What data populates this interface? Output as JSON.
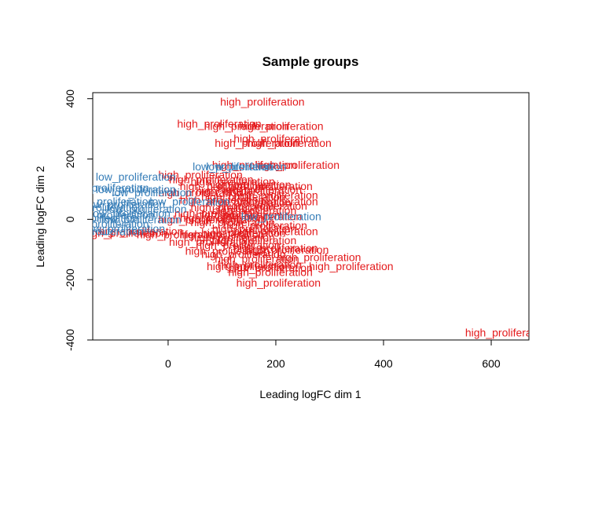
{
  "chart_data": {
    "type": "scatter",
    "title": "Sample groups",
    "xlabel": "Leading logFC dim 1",
    "ylabel": "Leading logFC dim 2",
    "xlim": [
      -140,
      670
    ],
    "ylim": [
      -400,
      420
    ],
    "xticks": [
      0,
      200,
      400,
      600
    ],
    "yticks": [
      -400,
      -200,
      0,
      200,
      400
    ],
    "grid": false,
    "colors": {
      "high_proliferation": "#e41a1c",
      "low_proliferation": "#377eb8"
    },
    "series": [
      {
        "name": "high_proliferation",
        "points": [
          [
            175,
            390
          ],
          [
            95,
            317
          ],
          [
            145,
            310
          ],
          [
            210,
            310
          ],
          [
            200,
            268
          ],
          [
            165,
            253
          ],
          [
            225,
            253
          ],
          [
            160,
            181
          ],
          [
            240,
            181
          ],
          [
            60,
            148
          ],
          [
            80,
            133
          ],
          [
            120,
            126
          ],
          [
            150,
            115
          ],
          [
            100,
            110
          ],
          [
            190,
            110
          ],
          [
            170,
            100
          ],
          [
            130,
            95
          ],
          [
            60,
            90
          ],
          [
            200,
            80
          ],
          [
            140,
            75
          ],
          [
            100,
            65
          ],
          [
            150,
            55
          ],
          [
            180,
            45
          ],
          [
            200,
            60
          ],
          [
            120,
            40
          ],
          [
            160,
            30
          ],
          [
            90,
            20
          ],
          [
            130,
            15
          ],
          [
            170,
            10
          ],
          [
            100,
            5
          ],
          [
            60,
            0
          ],
          [
            120,
            -10
          ],
          [
            180,
            -20
          ],
          [
            160,
            -30
          ],
          [
            200,
            -40
          ],
          [
            140,
            -45
          ],
          [
            100,
            -50
          ],
          [
            -50,
            -40
          ],
          [
            -80,
            -45
          ],
          [
            20,
            -50
          ],
          [
            120,
            -60
          ],
          [
            160,
            -70
          ],
          [
            80,
            -75
          ],
          [
            130,
            -85
          ],
          [
            200,
            -95
          ],
          [
            220,
            -100
          ],
          [
            110,
            -105
          ],
          [
            140,
            -115
          ],
          [
            280,
            -125
          ],
          [
            165,
            -130
          ],
          [
            170,
            -150
          ],
          [
            340,
            -155
          ],
          [
            150,
            -155
          ],
          [
            190,
            -160
          ],
          [
            190,
            -175
          ],
          [
            205,
            -210
          ],
          [
            630,
            -375
          ]
        ]
      },
      {
        "name": "low_proliferation",
        "points": [
          [
            -60,
            141
          ],
          [
            -110,
            105
          ],
          [
            -60,
            100
          ],
          [
            -30,
            90
          ],
          [
            -100,
            60
          ],
          [
            -80,
            50
          ],
          [
            -120,
            40
          ],
          [
            -40,
            35
          ],
          [
            -70,
            20
          ],
          [
            -100,
            15
          ],
          [
            -130,
            5
          ],
          [
            -50,
            0
          ],
          [
            -110,
            -15
          ],
          [
            -80,
            -30
          ],
          [
            -120,
            -40
          ],
          [
            210,
            10
          ],
          [
            40,
            60
          ],
          [
            145,
            175
          ],
          [
            120,
            175
          ]
        ]
      }
    ]
  }
}
